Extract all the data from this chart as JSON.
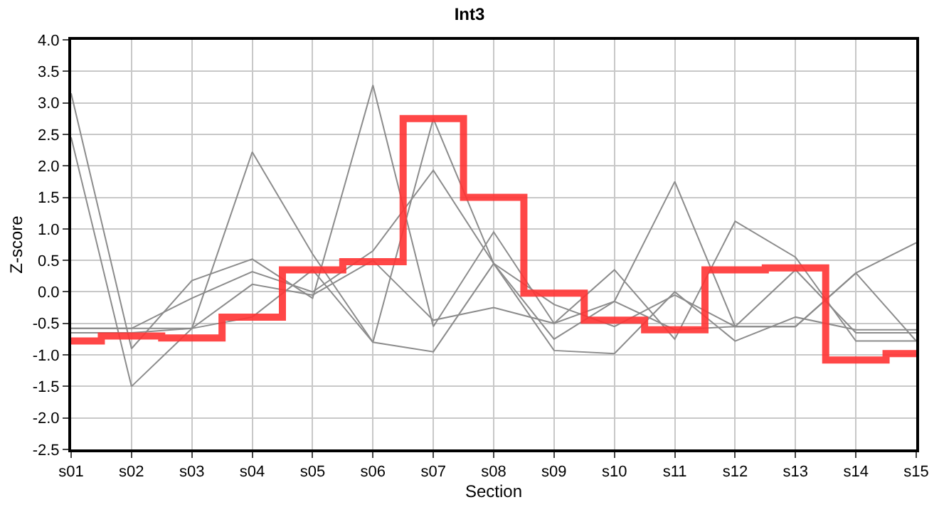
{
  "chart_data": {
    "type": "line",
    "title": "Int3",
    "xlabel": "Section",
    "ylabel": "Z-score",
    "categories": [
      "s01",
      "s02",
      "s03",
      "s04",
      "s05",
      "s06",
      "s07",
      "s08",
      "s09",
      "s10",
      "s11",
      "s12",
      "s13",
      "s14",
      "s15"
    ],
    "series": [
      {
        "color": "#8c8c8c",
        "values": [
          3.15,
          -0.9,
          0.18,
          0.52,
          -0.1,
          3.28,
          -0.55,
          0.95,
          -0.5,
          0.35,
          -0.75,
          1.12,
          0.55,
          -0.78,
          -0.78
        ]
      },
      {
        "color": "#8c8c8c",
        "values": [
          2.45,
          -1.5,
          -0.58,
          2.22,
          0.6,
          -0.8,
          2.75,
          0.45,
          -0.75,
          -0.15,
          1.75,
          -0.55,
          -0.55,
          0.3,
          -0.78
        ]
      },
      {
        "color": "#8c8c8c",
        "values": [
          -0.58,
          -0.58,
          -0.1,
          0.32,
          0.0,
          0.65,
          1.93,
          0.45,
          -0.2,
          -0.55,
          -0.05,
          -0.55,
          0.35,
          -0.65,
          -0.65
        ]
      },
      {
        "color": "#8c8c8c",
        "values": [
          -0.58,
          -0.58,
          -0.58,
          0.12,
          -0.05,
          0.5,
          -0.45,
          -0.25,
          -0.5,
          -0.15,
          -0.6,
          -0.55,
          -0.55,
          0.3,
          0.78
        ]
      },
      {
        "color": "#8c8c8c",
        "values": [
          -0.65,
          -0.65,
          -0.58,
          -0.4,
          0.35,
          -0.8,
          -0.95,
          0.45,
          -0.93,
          -0.98,
          0.0,
          -0.78,
          -0.4,
          -0.6,
          -0.6
        ]
      },
      {
        "type": "step",
        "color": "#ff3333",
        "values": [
          -0.78,
          -0.7,
          -0.73,
          -0.4,
          0.35,
          0.48,
          2.75,
          1.5,
          -0.02,
          -0.45,
          -0.6,
          0.35,
          0.38,
          -1.08,
          -0.98
        ]
      }
    ],
    "ylim": [
      -2.5,
      4.0
    ],
    "yticks": [
      {
        "value": -2.5,
        "label": "-2.5"
      },
      {
        "value": -2,
        "label": "-2.0"
      },
      {
        "value": -1.5,
        "label": "-1.5"
      },
      {
        "value": -1,
        "label": "-1.0"
      },
      {
        "value": -0.5,
        "label": "-0.5"
      },
      {
        "value": 0,
        "label": "0.0"
      },
      {
        "value": 0.5,
        "label": "0.5"
      },
      {
        "value": 1,
        "label": "1.0"
      },
      {
        "value": 1.5,
        "label": "1.5"
      },
      {
        "value": 2,
        "label": "2.0"
      },
      {
        "value": 2.5,
        "label": "2.5"
      },
      {
        "value": 3,
        "label": "3.0"
      },
      {
        "value": 3.5,
        "label": "3.5"
      },
      {
        "value": 4,
        "label": "4.0"
      }
    ],
    "grid": true,
    "marker": "none"
  }
}
